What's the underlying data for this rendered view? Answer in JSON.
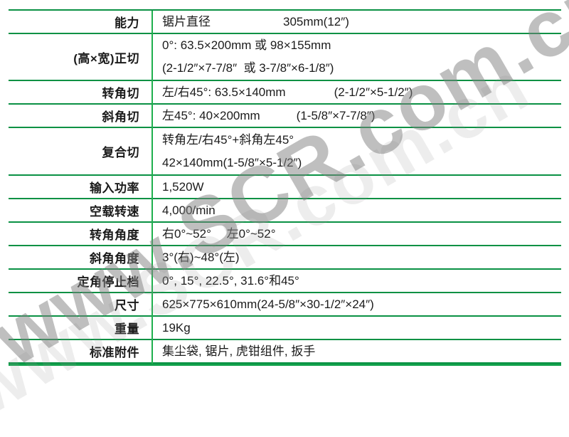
{
  "watermark": {
    "text": "www.SCR.com.cn"
  },
  "table": {
    "line_color": "#0a9144",
    "divider_color": "#1fb04e",
    "rows": [
      {
        "label": "能力",
        "value1": "锯片直径　　　　　　305mm(12″)"
      },
      {
        "label": "(高×宽)正切",
        "value1": "0°: 63.5×200mm 或 98×155mm",
        "value2": "(2-1/2″×7-7/8″  或 3-7/8″×6-1/8″)"
      },
      {
        "label": "转角切",
        "value1": "左/右45°: 63.5×140mm　　　　(2-1/2″×5-1/2″)"
      },
      {
        "label": "斜角切",
        "value1": "左45°: 40×200mm　　　(1-5/8″×7-7/8″)"
      },
      {
        "label": "复合切",
        "value1": "转角左/右45°+斜角左45°",
        "value2": "42×140mm(1-5/8″×5-1/2″)"
      },
      {
        "label": "输入功率",
        "value1": "1,520W"
      },
      {
        "label": "空载转速",
        "value1": "4,000/min"
      },
      {
        "label": "转角角度",
        "value1": "右0°~52°　 左0°~52°"
      },
      {
        "label": "斜角角度",
        "value1": "3°(右)~48°(左)"
      },
      {
        "label": "定角停止档",
        "value1": "0°, 15°, 22.5°, 31.6°和45°"
      },
      {
        "label": "尺寸",
        "value1": "625×775×610mm(24-5/8″×30-1/2″×24″)"
      },
      {
        "label": "重量",
        "value1": "19Kg"
      },
      {
        "label": "标准附件",
        "value1": "集尘袋, 锯片, 虎钳组件, 扳手"
      }
    ]
  }
}
